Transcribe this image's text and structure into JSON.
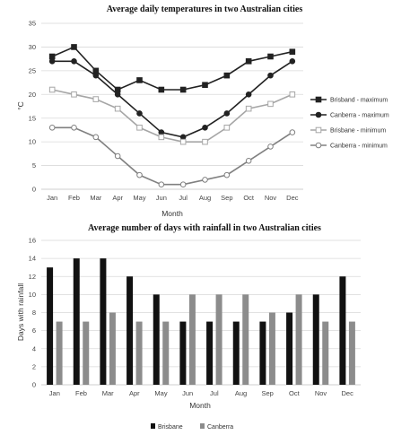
{
  "chart_data": [
    {
      "type": "line",
      "title": "Average daily temperatures in two Australian cities",
      "xlabel": "Month",
      "ylabel": "°C",
      "ylim": [
        0,
        35
      ],
      "yticks": [
        0,
        5,
        10,
        15,
        20,
        25,
        30,
        35
      ],
      "grid": true,
      "legend_position": "right",
      "categories": [
        "Jan",
        "Feb",
        "Mar",
        "Apr",
        "May",
        "Jun",
        "Jul",
        "Aug",
        "Sep",
        "Oct",
        "Nov",
        "Dec"
      ],
      "series": [
        {
          "name": "Brisband - maximum",
          "values": [
            28,
            30,
            25,
            21,
            23,
            21,
            21,
            22,
            24,
            27,
            28,
            29
          ],
          "color": "#222222",
          "marker": "square-filled"
        },
        {
          "name": "Canberra - maximum",
          "values": [
            27,
            27,
            24,
            20,
            16,
            12,
            11,
            13,
            16,
            20,
            24,
            27
          ],
          "color": "#222222",
          "marker": "circle-filled"
        },
        {
          "name": "Brisbane - minimum",
          "values": [
            21,
            20,
            19,
            17,
            13,
            11,
            10,
            10,
            13,
            17,
            18,
            20
          ],
          "color": "#a6a6a6",
          "marker": "square-open"
        },
        {
          "name": "Canberra - minimum",
          "values": [
            13,
            13,
            11,
            7,
            3,
            1,
            1,
            2,
            3,
            6,
            9,
            12
          ],
          "color": "#808080",
          "marker": "circle-open"
        }
      ]
    },
    {
      "type": "bar",
      "title": "Average number of days with rainfall in two Australian cities",
      "xlabel": "Month",
      "ylabel": "Days with rainfall",
      "ylim": [
        0,
        16
      ],
      "yticks": [
        0,
        2,
        4,
        6,
        8,
        10,
        12,
        14,
        16
      ],
      "grid": true,
      "legend_position": "bottom",
      "categories": [
        "Jan",
        "Feb",
        "Mar",
        "Apr",
        "May",
        "Jun",
        "Jul",
        "Aug",
        "Sep",
        "Oct",
        "Nov",
        "Dec"
      ],
      "series": [
        {
          "name": "Brisbane",
          "values": [
            13,
            14,
            14,
            12,
            10,
            7,
            7,
            7,
            7,
            8,
            10,
            12
          ],
          "color": "#111111"
        },
        {
          "name": "Canberra",
          "values": [
            7,
            7,
            8,
            7,
            7,
            10,
            10,
            10,
            8,
            10,
            7,
            7
          ],
          "color": "#8c8c8c"
        }
      ]
    }
  ]
}
